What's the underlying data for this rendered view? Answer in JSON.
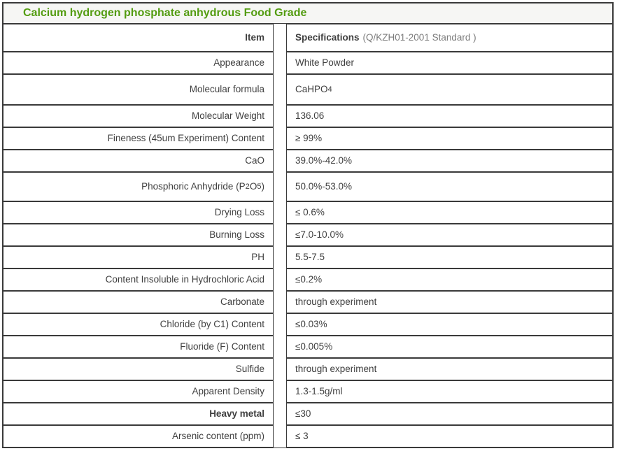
{
  "page": {
    "title": "Calcium hydrogen phosphate anhydrous Food Grade"
  },
  "colors": {
    "title_green": "#539c10",
    "border_gray": "#3a3a3a",
    "title_background": "#f6f6f4",
    "body_text": "#3f3f3f",
    "note_gray": "#7d7d7d"
  },
  "table": {
    "header": {
      "item_label": "Item",
      "spec_label": "Specifications",
      "spec_note": "(Q/KZH01-2001 Standard )"
    },
    "rows": [
      {
        "item": "Appearance",
        "spec": "White Powder"
      },
      {
        "item": "Molecular formula",
        "spec": "CaHPO~4~"
      },
      {
        "item": "Molecular Weight",
        "spec": "136.06"
      },
      {
        "item": "Fineness (45um Experiment) Content",
        "spec": "≥ 99%"
      },
      {
        "item": "CaO",
        "spec": "39.0%-42.0%"
      },
      {
        "item": "Phosphoric Anhydride (P~2~O~5~)",
        "spec": "50.0%-53.0%"
      },
      {
        "item": "Drying Loss",
        "spec": "≤ 0.6%"
      },
      {
        "item": "Burning Loss",
        "spec": "≤7.0-10.0%"
      },
      {
        "item": "PH",
        "spec": "5.5-7.5"
      },
      {
        "item": "Content Insoluble in Hydrochloric Acid",
        "spec": "≤0.2%"
      },
      {
        "item": "Carbonate",
        "spec": "through experiment"
      },
      {
        "item": "Chloride (by C1) Content",
        "spec": "≤0.03%"
      },
      {
        "item": "Fluoride (F) Content",
        "spec": "≤0.005%"
      },
      {
        "item": "Sulfide",
        "spec": "through experiment"
      },
      {
        "item": "Apparent Density",
        "spec": "1.3-1.5g/ml"
      },
      {
        "item": "Heavy metal",
        "spec": "≤30"
      },
      {
        "item": "Arsenic content (ppm)",
        "spec": "≤ 3"
      }
    ]
  }
}
